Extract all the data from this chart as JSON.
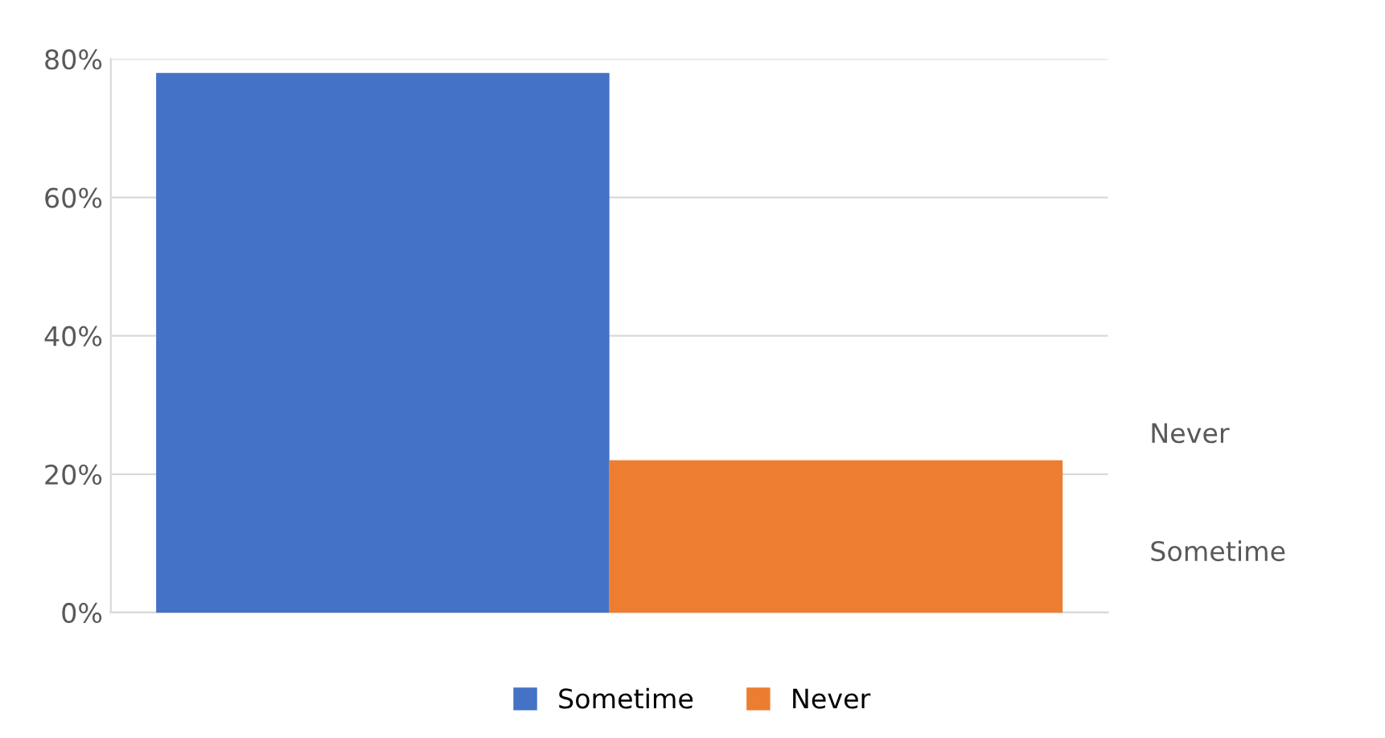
{
  "chart_data": {
    "type": "bar",
    "categories": [
      null
    ],
    "series": [
      {
        "name": "Sometime",
        "color": "#4472c4",
        "values": [
          78
        ]
      },
      {
        "name": "Never",
        "color": "#ed7d31",
        "values": [
          22
        ]
      }
    ],
    "ylim": [
      0,
      80
    ],
    "yticks": [
      {
        "value": 0,
        "label": "0%"
      },
      {
        "value": 20,
        "label": "20%"
      },
      {
        "value": 40,
        "label": "40%"
      },
      {
        "value": 60,
        "label": "60%"
      },
      {
        "value": 80,
        "label": "80%"
      }
    ],
    "grid": "y",
    "legend": "bottom",
    "annotations": [
      "Never",
      "Sometime"
    ]
  }
}
